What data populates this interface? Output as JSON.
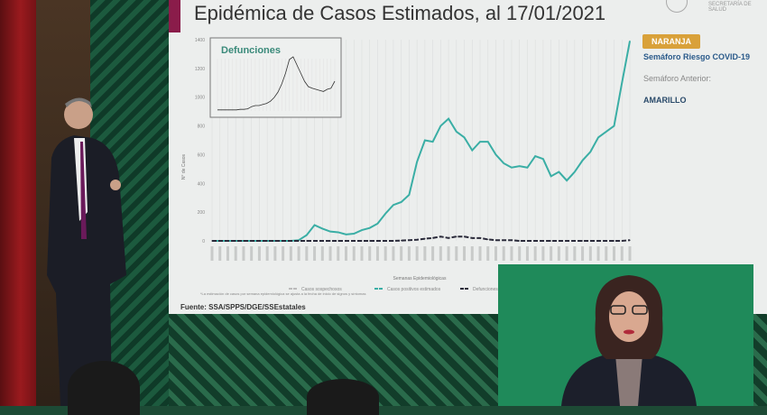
{
  "slide": {
    "title": "Epidémica de Casos Estimados, al 17/01/2021",
    "logo_text": "SECRETARÍA DE SALUD",
    "source": "Fuente: SSA/SPPS/DGE/SSEstatales",
    "note": "*La estimación de casos por semana epidemiológica se ajusta a la fecha de inicio de signos y síntomas",
    "semaforo": {
      "badge": "NARANJA",
      "badge_color": "#d9a13a",
      "label": "Semáforo Riesgo COVID-19",
      "previous_label": "Semáforo Anterior:",
      "previous_value": "AMARILLO"
    }
  },
  "chart_data": {
    "type": "line",
    "xlabel": "Semanas Epidemiológicas",
    "ylabel": "N° de Casos",
    "ylim": [
      0,
      1400
    ],
    "yticks": [
      0,
      200,
      400,
      600,
      800,
      1000,
      1200,
      1400
    ],
    "grid": "vertical",
    "legend_placement": "bottom",
    "series": [
      {
        "name": "Casos sospechosos",
        "color": "#bbbbbb",
        "values": []
      },
      {
        "name": "Casos positivos estimados",
        "color": "#3aaea5",
        "values": [
          0,
          0,
          0,
          0,
          0,
          0,
          0,
          0,
          0,
          0,
          0,
          5,
          40,
          110,
          85,
          65,
          60,
          45,
          50,
          75,
          90,
          120,
          190,
          250,
          270,
          320,
          550,
          700,
          690,
          800,
          850,
          760,
          720,
          630,
          690,
          690,
          600,
          540,
          510,
          520,
          510,
          590,
          570,
          450,
          480,
          420,
          480,
          560,
          620,
          720,
          760,
          800,
          1100,
          1390
        ]
      },
      {
        "name": "Defunciones con",
        "color": "#2a2a3a",
        "values": [
          0,
          0,
          0,
          0,
          0,
          0,
          0,
          0,
          0,
          0,
          0,
          0,
          0,
          0,
          0,
          0,
          0,
          0,
          0,
          0,
          0,
          0,
          0,
          0,
          2,
          5,
          8,
          15,
          20,
          30,
          20,
          30,
          30,
          20,
          20,
          10,
          5,
          5,
          5,
          0,
          0,
          0,
          0,
          0,
          0,
          0,
          0,
          0,
          0,
          0,
          0,
          0,
          0,
          5
        ]
      }
    ],
    "inset": {
      "title": "Defunciones",
      "color": "#333333",
      "values": [
        2,
        2,
        2,
        2,
        2,
        2,
        3,
        3,
        4,
        8,
        10,
        10,
        12,
        14,
        18,
        25,
        35,
        50,
        70,
        95,
        100,
        85,
        70,
        55,
        45,
        42,
        40,
        38,
        36,
        40,
        42,
        55
      ]
    }
  }
}
